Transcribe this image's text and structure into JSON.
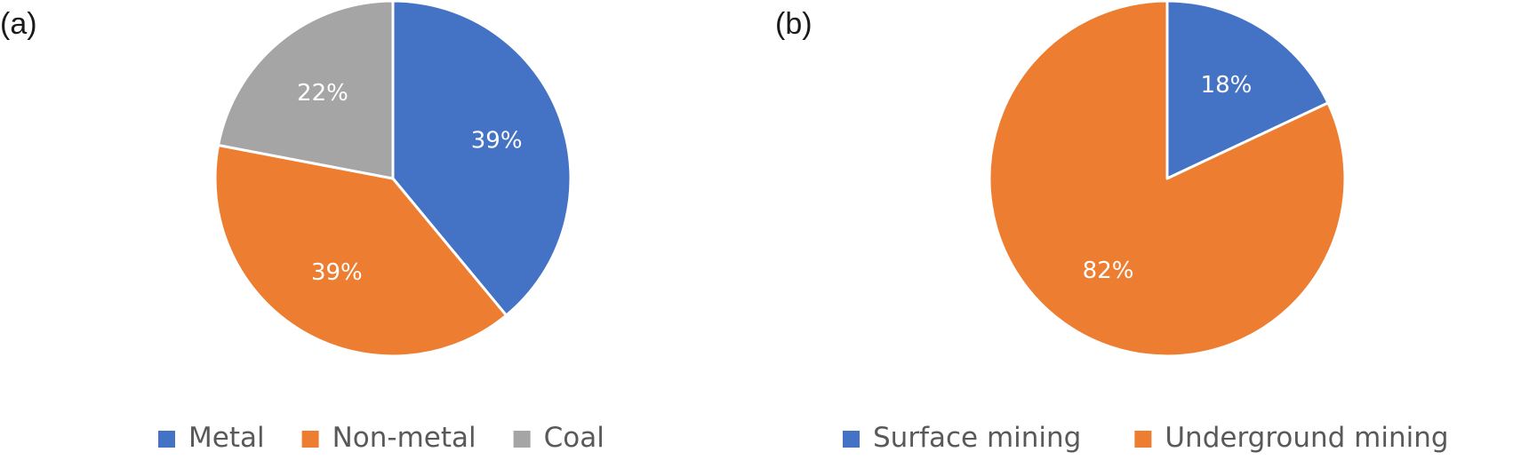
{
  "chart_data": [
    {
      "type": "pie",
      "panel_label": "(a)",
      "slices": [
        {
          "name": "Metal",
          "value": 39,
          "label": "39%",
          "color": "#4472C4"
        },
        {
          "name": "Non-metal",
          "value": 39,
          "label": "39%",
          "color": "#ED7D31"
        },
        {
          "name": "Coal",
          "value": 22,
          "label": "22%",
          "color": "#A5A5A5"
        }
      ],
      "legend_position": "bottom"
    },
    {
      "type": "pie",
      "panel_label": "(b)",
      "slices": [
        {
          "name": "Surface mining",
          "value": 18,
          "label": "18%",
          "color": "#4472C4"
        },
        {
          "name": "Underground mining",
          "value": 82,
          "label": "82%",
          "color": "#ED7D31"
        }
      ],
      "legend_position": "bottom"
    }
  ]
}
